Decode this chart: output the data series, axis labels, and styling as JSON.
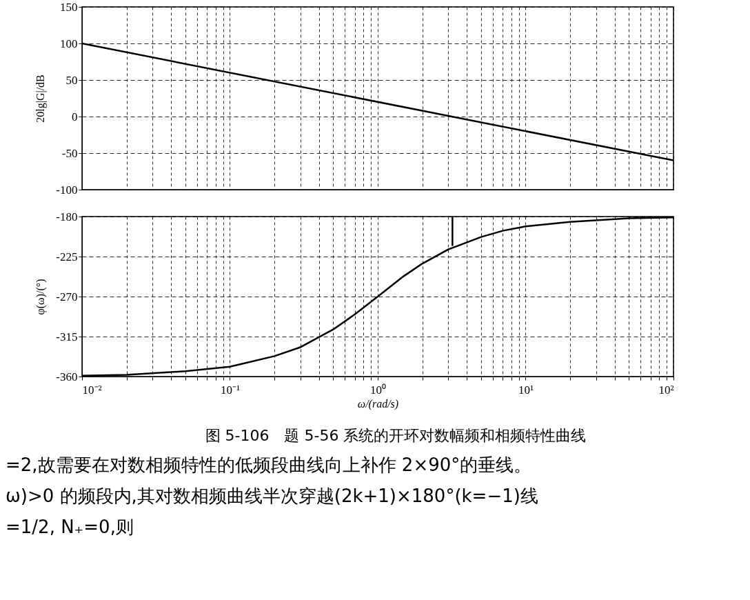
{
  "chart_data": [
    {
      "type": "line",
      "ylabel": "20lg|G|/dB",
      "tick_labels": "y",
      "grid": true,
      "log": "x",
      "line_style": "solid",
      "marker": "none",
      "series": [
        {
          "color": "#000000",
          "x": [
            0.01,
            100
          ],
          "values": [
            100,
            -60
          ]
        }
      ],
      "xlim": [
        0.01,
        100
      ],
      "xticks": [
        0.01,
        {
          "value": 0.02,
          "label": null
        },
        {
          "value": 0.03,
          "label": null
        },
        {
          "value": 0.04,
          "label": null
        },
        {
          "value": 0.05,
          "label": null
        },
        {
          "value": 0.06,
          "label": null
        },
        {
          "value": 0.07,
          "label": null
        },
        {
          "value": 0.08,
          "label": null
        },
        {
          "value": 0.09,
          "label": null
        },
        0.1,
        {
          "value": 0.2,
          "label": null
        },
        {
          "value": 0.3,
          "label": null
        },
        {
          "value": 0.4,
          "label": null
        },
        {
          "value": 0.5,
          "label": null
        },
        {
          "value": 0.6,
          "label": null
        },
        {
          "value": 0.7,
          "label": null
        },
        {
          "value": 0.8,
          "label": null
        },
        {
          "value": 0.9,
          "label": null
        },
        1,
        {
          "value": 2,
          "label": null
        },
        {
          "value": 3,
          "label": null
        },
        {
          "value": 4,
          "label": null
        },
        {
          "value": 5,
          "label": null
        },
        {
          "value": 6,
          "label": null
        },
        {
          "value": 7,
          "label": null
        },
        {
          "value": 8,
          "label": null
        },
        {
          "value": 9,
          "label": null
        },
        10,
        {
          "value": 20,
          "label": null
        },
        {
          "value": 30,
          "label": null
        },
        {
          "value": 40,
          "label": null
        },
        {
          "value": 50,
          "label": null
        },
        {
          "value": 60,
          "label": null
        },
        {
          "value": 70,
          "label": null
        },
        {
          "value": 80,
          "label": null
        },
        {
          "value": 90,
          "label": null
        },
        100
      ],
      "ylim": [
        -100,
        150
      ],
      "yticks": [
        -100,
        -50,
        0,
        50,
        100,
        150
      ]
    },
    {
      "type": "line",
      "ylabel": "φ(ω)/(°)",
      "xlabel": "ω/(rad/s)",
      "grid": true,
      "log": "x",
      "line_style": "solid",
      "marker": "none",
      "title": "图 5-106　题 5-56 系统的开环对数幅频和相频特性曲线",
      "annotations": [
        "=2,故需要在对数相频特性的低频段曲线向上补作 2×90°的垂线。",
        "ω)>0 的频段内,其对数相频曲线半次穿越(2k+1)×180°(k=−1)线",
        "=1/2, N₊=0,则"
      ],
      "series": [
        {
          "color": "#000000",
          "x": [
            0.01,
            0.02,
            0.05,
            0.1,
            0.2,
            0.3,
            0.5,
            0.7,
            1,
            1.5,
            2,
            3,
            5,
            7,
            10,
            20,
            50,
            100
          ],
          "values": [
            -359,
            -358,
            -354,
            -349,
            -337,
            -327,
            -307,
            -290,
            -270,
            -247,
            -233,
            -217,
            -203,
            -196,
            -191,
            -186,
            -182,
            -181
          ]
        },
        {
          "color": "#000000",
          "x": [
            3.2,
            3.2
          ],
          "values": [
            -213,
            -180
          ]
        }
      ],
      "xlim": [
        0.01,
        100
      ],
      "xticks": [
        {
          "value": 0.01,
          "label": "10⁻²"
        },
        {
          "value": 0.02,
          "label": null
        },
        {
          "value": 0.03,
          "label": null
        },
        {
          "value": 0.04,
          "label": null
        },
        {
          "value": 0.05,
          "label": null
        },
        {
          "value": 0.06,
          "label": null
        },
        {
          "value": 0.07,
          "label": null
        },
        {
          "value": 0.08,
          "label": null
        },
        {
          "value": 0.09,
          "label": null
        },
        {
          "value": 0.1,
          "label": "10⁻¹"
        },
        {
          "value": 0.2,
          "label": null
        },
        {
          "value": 0.3,
          "label": null
        },
        {
          "value": 0.4,
          "label": null
        },
        {
          "value": 0.5,
          "label": null
        },
        {
          "value": 0.6,
          "label": null
        },
        {
          "value": 0.7,
          "label": null
        },
        {
          "value": 0.8,
          "label": null
        },
        {
          "value": 0.9,
          "label": null
        },
        {
          "value": 1,
          "label": "10⁰"
        },
        {
          "value": 2,
          "label": null
        },
        {
          "value": 3,
          "label": null
        },
        {
          "value": 4,
          "label": null
        },
        {
          "value": 5,
          "label": null
        },
        {
          "value": 6,
          "label": null
        },
        {
          "value": 7,
          "label": null
        },
        {
          "value": 8,
          "label": null
        },
        {
          "value": 9,
          "label": null
        },
        {
          "value": 10,
          "label": "10¹"
        },
        {
          "value": 20,
          "label": null
        },
        {
          "value": 30,
          "label": null
        },
        {
          "value": 40,
          "label": null
        },
        {
          "value": 50,
          "label": null
        },
        {
          "value": 60,
          "label": null
        },
        {
          "value": 70,
          "label": null
        },
        {
          "value": 80,
          "label": null
        },
        {
          "value": 90,
          "label": null
        },
        {
          "value": 100,
          "label": "10²"
        }
      ],
      "ylim": [
        -360,
        -180
      ],
      "yticks": [
        -360,
        -315,
        -270,
        -225,
        -180
      ]
    }
  ]
}
